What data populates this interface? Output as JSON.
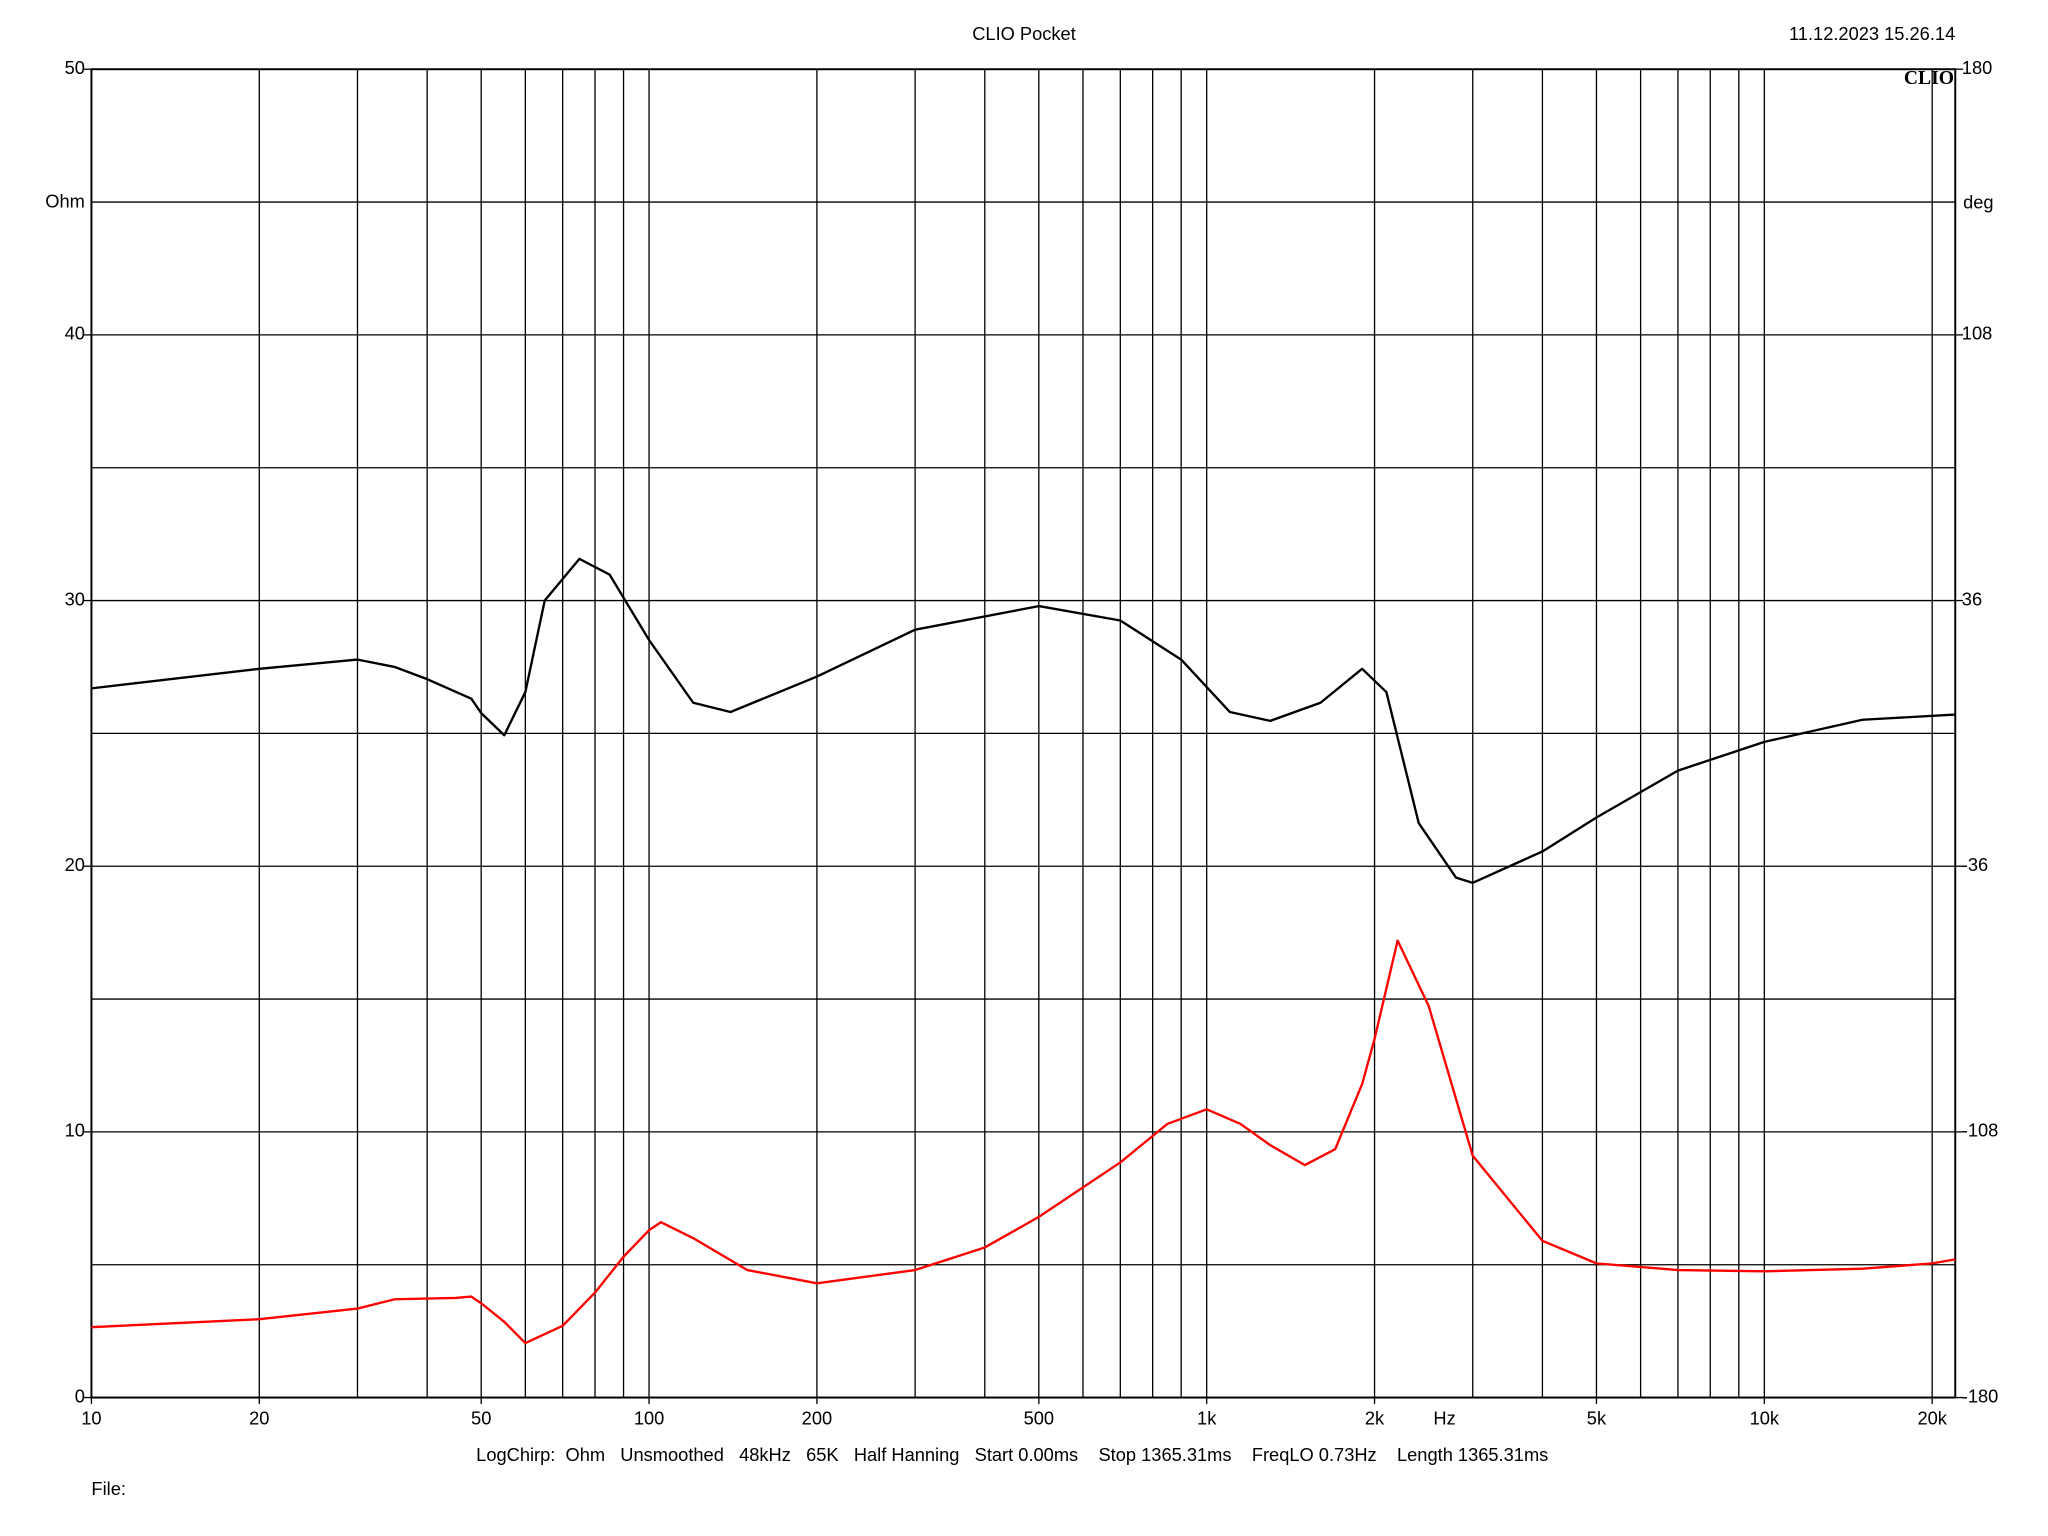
{
  "chart_data": {
    "type": "line",
    "title": "CLIO Pocket",
    "timestamp": "11.12.2023 15.26.14",
    "logo": "CLIO",
    "y_label": "Ohm",
    "y2_label": "deg",
    "x_label": "Hz",
    "footer": "LogChirp:  Ohm   Unsmoothed   48kHz   65K   Half Hanning   Start 0.00ms    Stop 1365.31ms    FreqLO 0.73Hz    Length 1365.31ms",
    "file_label": "File:",
    "x_log": true,
    "grid": true,
    "xlim": [
      10,
      22000
    ],
    "xticks": [
      10,
      20,
      50,
      100,
      200,
      500,
      {
        "value": 1000,
        "label": "1k"
      },
      {
        "value": 2000,
        "label": "2k"
      },
      {
        "value": 5000,
        "label": "5k"
      },
      {
        "value": 10000,
        "label": "10k"
      },
      {
        "value": 20000,
        "label": "20k"
      }
    ],
    "xgrid": [
      10,
      20,
      30,
      40,
      50,
      60,
      70,
      80,
      90,
      100,
      200,
      300,
      400,
      500,
      600,
      700,
      800,
      900,
      1000,
      2000,
      3000,
      4000,
      5000,
      6000,
      7000,
      8000,
      9000,
      10000,
      20000
    ],
    "ylim": [
      0,
      50
    ],
    "yticks": [
      0,
      10,
      20,
      30,
      40,
      50
    ],
    "ygrid": [
      0,
      5,
      10,
      15,
      20,
      25,
      30,
      35,
      40,
      45,
      50
    ],
    "y2lim": [
      -180,
      180
    ],
    "y2ticks": [
      -180,
      -108,
      -36,
      36,
      108,
      180
    ],
    "series": [
      {
        "color": "#ff0000",
        "x": [
          10,
          20,
          30,
          35,
          45,
          48,
          50,
          55,
          60,
          70,
          80,
          90,
          100,
          105,
          120,
          150,
          200,
          300,
          400,
          500,
          700,
          850,
          1000,
          1150,
          1300,
          1500,
          1700,
          1900,
          2000,
          2200,
          2500,
          3000,
          4000,
          5000,
          7000,
          10000,
          15000,
          20000,
          22000
        ],
        "values": [
          2.65,
          2.95,
          3.35,
          3.7,
          3.75,
          3.8,
          3.55,
          2.85,
          2.05,
          2.7,
          3.95,
          5.3,
          6.3,
          6.6,
          6.0,
          4.8,
          4.3,
          4.8,
          5.65,
          6.8,
          8.85,
          10.3,
          10.85,
          10.3,
          9.5,
          8.75,
          9.35,
          11.8,
          13.5,
          17.2,
          14.75,
          9.1,
          5.9,
          5.05,
          4.8,
          4.75,
          4.85,
          5.05,
          5.2
        ]
      },
      {
        "color": "#000000",
        "axis": "y2",
        "x": [
          10,
          20,
          30,
          35,
          40,
          48,
          50,
          55,
          60,
          65,
          75,
          85,
          100,
          120,
          140,
          200,
          300,
          500,
          700,
          900,
          1100,
          1300,
          1600,
          1900,
          2100,
          2400,
          2800,
          3000,
          4000,
          5000,
          7000,
          10000,
          15000,
          22000
        ],
        "values": [
          12.2,
          17.5,
          20,
          18,
          14.7,
          9.4,
          5.5,
          -0.5,
          11.2,
          36,
          47.3,
          43,
          25.3,
          8.3,
          5.8,
          15.4,
          28.1,
          34.5,
          30.6,
          20,
          5.8,
          3.4,
          8.3,
          17.5,
          11.2,
          -24.3,
          -39.1,
          -40.5,
          -32,
          -22.8,
          -10.1,
          -2.3,
          3.7,
          5.1
        ]
      }
    ]
  }
}
